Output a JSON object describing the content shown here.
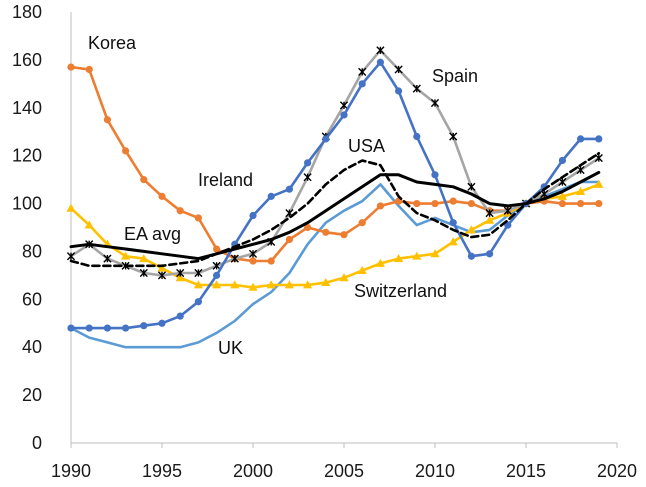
{
  "chart_data": {
    "type": "line",
    "title": "",
    "xlabel": "",
    "ylabel": "",
    "xlim": [
      1990,
      2020
    ],
    "ylim": [
      0,
      180
    ],
    "grid": false,
    "x_ticks": [
      "1990",
      "1995",
      "2000",
      "2005",
      "2010",
      "2015",
      "2020"
    ],
    "y_ticks": [
      "0",
      "20",
      "40",
      "60",
      "80",
      "100",
      "120",
      "140",
      "160",
      "180"
    ],
    "series": [
      {
        "name": "Korea",
        "color": "#ED7D31",
        "marker": "circle",
        "x": [
          1990,
          1991,
          1992,
          1993,
          1994,
          1995,
          1996,
          1997,
          1998,
          1999,
          2000,
          2001,
          2002,
          2003,
          2004,
          2005,
          2006,
          2007,
          2008,
          2009,
          2010,
          2011,
          2012,
          2013,
          2014,
          2015,
          2016,
          2017,
          2018,
          2019
        ],
        "values": [
          157,
          156,
          135,
          122,
          110,
          103,
          97,
          94,
          81,
          77,
          76,
          76,
          85,
          90,
          88,
          87,
          92,
          99,
          101,
          100,
          100,
          101,
          100,
          97,
          97,
          100,
          101,
          100,
          100,
          100
        ]
      },
      {
        "name": "Spain",
        "color": "#A5A5A5",
        "marker": "asterisk",
        "x": [
          1990,
          1991,
          1992,
          1993,
          1994,
          1995,
          1996,
          1997,
          1998,
          1999,
          2000,
          2001,
          2002,
          2003,
          2004,
          2005,
          2006,
          2007,
          2008,
          2009,
          2010,
          2011,
          2012,
          2013,
          2014,
          2015,
          2016,
          2017,
          2018,
          2019
        ],
        "values": [
          78,
          83,
          77,
          74,
          71,
          70,
          71,
          71,
          74,
          77,
          79,
          84,
          96,
          111,
          128,
          141,
          155,
          164,
          156,
          148,
          142,
          128,
          107,
          96,
          97,
          100,
          104,
          109,
          114,
          119
        ]
      },
      {
        "name": "Ireland",
        "color": "#4472C4",
        "marker": "circle",
        "x": [
          1990,
          1991,
          1992,
          1993,
          1994,
          1995,
          1996,
          1997,
          1998,
          1999,
          2000,
          2001,
          2002,
          2003,
          2004,
          2005,
          2006,
          2007,
          2008,
          2009,
          2010,
          2011,
          2012,
          2013,
          2014,
          2015,
          2016,
          2017,
          2018,
          2019
        ],
        "values": [
          48,
          48,
          48,
          48,
          49,
          50,
          53,
          59,
          70,
          83,
          95,
          103,
          106,
          117,
          127,
          137,
          150,
          159,
          147,
          128,
          112,
          92,
          78,
          79,
          91,
          100,
          107,
          118,
          127,
          127
        ]
      },
      {
        "name": "UK",
        "color": "#5B9BD5",
        "marker": "none",
        "x": [
          1990,
          1991,
          1992,
          1993,
          1994,
          1995,
          1996,
          1997,
          1998,
          1999,
          2000,
          2001,
          2002,
          2003,
          2004,
          2005,
          2006,
          2007,
          2008,
          2009,
          2010,
          2011,
          2012,
          2013,
          2014,
          2015,
          2016,
          2017,
          2018,
          2019
        ],
        "values": [
          48,
          44,
          42,
          40,
          40,
          40,
          40,
          42,
          46,
          51,
          58,
          63,
          71,
          83,
          92,
          97,
          101,
          108,
          99,
          91,
          94,
          91,
          88,
          89,
          95,
          100,
          103,
          106,
          109,
          109
        ]
      },
      {
        "name": "Switzerland",
        "color": "#FFC000",
        "marker": "triangle",
        "x": [
          1990,
          1991,
          1992,
          1993,
          1994,
          1995,
          1996,
          1997,
          1998,
          1999,
          2000,
          2001,
          2002,
          2003,
          2004,
          2005,
          2006,
          2007,
          2008,
          2009,
          2010,
          2011,
          2012,
          2013,
          2014,
          2015,
          2016,
          2017,
          2018,
          2019
        ],
        "values": [
          98,
          91,
          83,
          78,
          77,
          73,
          69,
          66,
          66,
          66,
          65,
          66,
          66,
          66,
          67,
          69,
          72,
          75,
          77,
          78,
          79,
          84,
          89,
          93,
          96,
          100,
          102,
          103,
          105,
          108
        ]
      },
      {
        "name": "USA",
        "color": "#000000",
        "marker": "none",
        "dashed": true,
        "x": [
          1990,
          1991,
          1992,
          1993,
          1994,
          1995,
          1996,
          1997,
          1998,
          1999,
          2000,
          2001,
          2002,
          2003,
          2004,
          2005,
          2006,
          2007,
          2008,
          2009,
          2010,
          2011,
          2012,
          2013,
          2014,
          2015,
          2016,
          2017,
          2018,
          2019
        ],
        "values": [
          76,
          74,
          74,
          74,
          74,
          74,
          75,
          76,
          79,
          82,
          85,
          89,
          94,
          100,
          108,
          114,
          118,
          116,
          103,
          96,
          93,
          89,
          86,
          87,
          93,
          100,
          106,
          111,
          116,
          121
        ]
      },
      {
        "name": "EA avg",
        "color": "#000000",
        "marker": "none",
        "x": [
          1990,
          1991,
          1992,
          1993,
          1994,
          1995,
          1996,
          1997,
          1998,
          1999,
          2000,
          2001,
          2002,
          2003,
          2004,
          2005,
          2006,
          2007,
          2008,
          2009,
          2010,
          2011,
          2012,
          2013,
          2014,
          2015,
          2016,
          2017,
          2018,
          2019
        ],
        "values": [
          82,
          83,
          82,
          81,
          80,
          79,
          78,
          77,
          79,
          81,
          83,
          85,
          88,
          92,
          97,
          102,
          107,
          112,
          112,
          109,
          108,
          107,
          104,
          100,
          99,
          100,
          102,
          105,
          109,
          113
        ]
      }
    ],
    "labels": {
      "Korea": "Korea",
      "Spain": "Spain",
      "Ireland": "Ireland",
      "USA": "USA",
      "EA avg": "EA avg",
      "Switzerland": "Switzerland",
      "UK": "UK"
    }
  }
}
